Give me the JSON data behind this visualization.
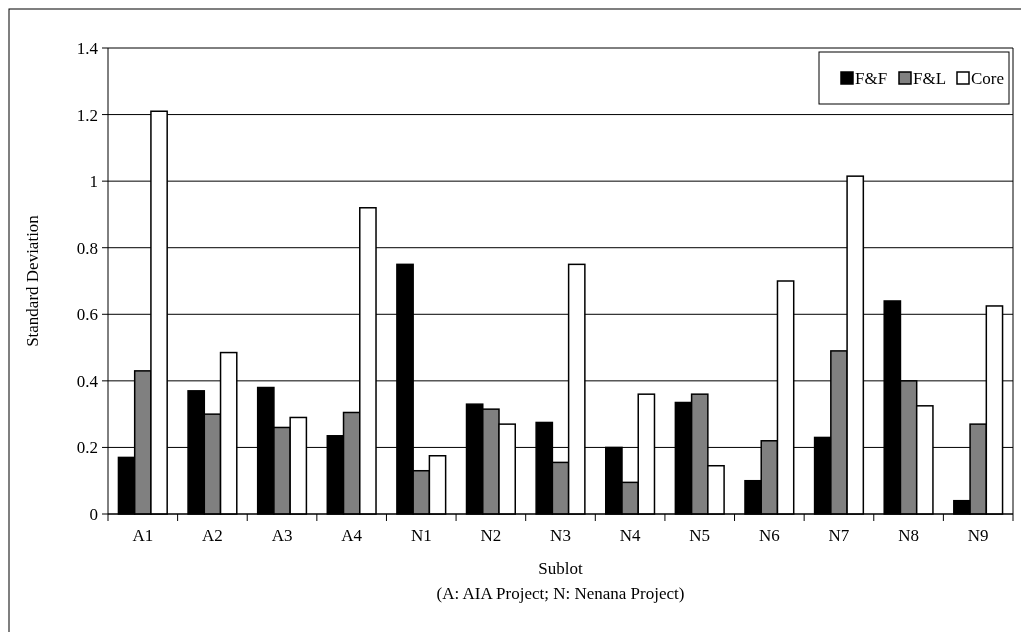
{
  "chart_data": {
    "type": "bar",
    "xlabel": "Sublot",
    "ylabel": "Standard Deviation",
    "annotations": [
      "(A: AIA Project; N: Nenana Project)"
    ],
    "categories": [
      "A1",
      "A2",
      "A3",
      "A4",
      "N1",
      "N2",
      "N3",
      "N4",
      "N5",
      "N6",
      "N7",
      "N8",
      "N9"
    ],
    "series": [
      {
        "name": "F&F",
        "color": "#000000",
        "values": [
          0.17,
          0.37,
          0.38,
          0.235,
          0.75,
          0.33,
          0.275,
          0.2,
          0.335,
          0.1,
          0.23,
          0.64,
          0.04
        ]
      },
      {
        "name": "F&L",
        "color": "#808080",
        "values": [
          0.43,
          0.3,
          0.26,
          0.305,
          0.13,
          0.315,
          0.155,
          0.095,
          0.36,
          0.22,
          0.49,
          0.4,
          0.27
        ]
      },
      {
        "name": "Core",
        "color": "#ffffff",
        "values": [
          1.21,
          0.485,
          0.29,
          0.92,
          0.175,
          0.27,
          0.75,
          0.36,
          0.145,
          0.7,
          1.015,
          0.325,
          0.625
        ]
      }
    ],
    "ylim": [
      0,
      1.4
    ],
    "yticks": [
      0,
      0.2,
      0.4,
      0.6,
      0.8,
      1,
      1.2,
      1.4
    ],
    "grid": "y",
    "legend": "top right"
  }
}
